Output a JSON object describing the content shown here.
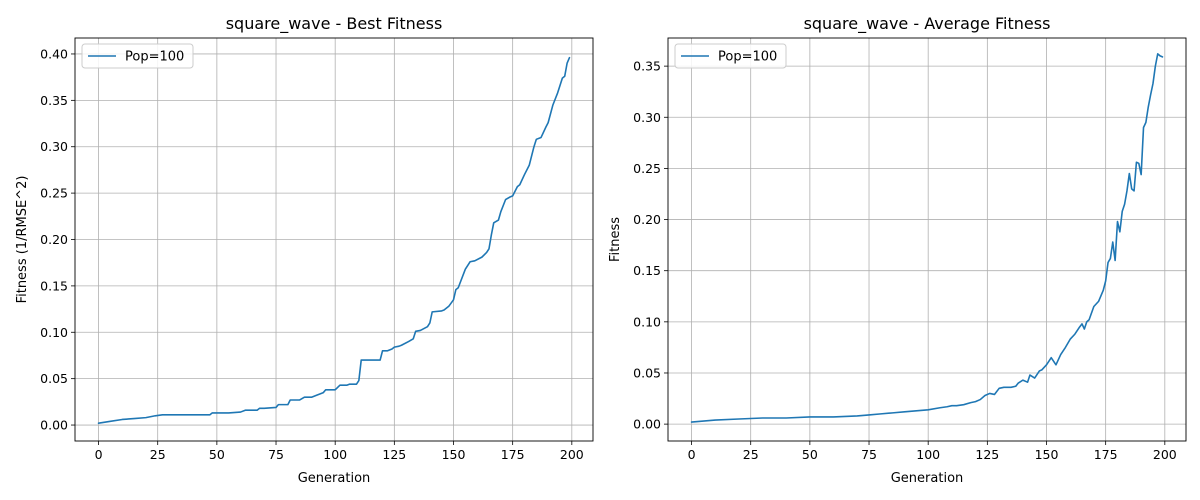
{
  "chart_data": [
    {
      "type": "line",
      "title": "square_wave - Best Fitness",
      "xlabel": "Generation",
      "ylabel": "Fitness (1/RMSE^2)",
      "xlim": [
        -9.95,
        208.95
      ],
      "ylim": [
        -0.0172,
        0.4172
      ],
      "xticks": [
        0,
        25,
        50,
        75,
        100,
        125,
        150,
        175,
        200
      ],
      "yticks": [
        0.0,
        0.05,
        0.1,
        0.15,
        0.2,
        0.25,
        0.3,
        0.35,
        0.4
      ],
      "xtick_labels": [
        "0",
        "25",
        "50",
        "75",
        "100",
        "125",
        "150",
        "175",
        "200"
      ],
      "ytick_labels": [
        "0.00",
        "0.05",
        "0.10",
        "0.15",
        "0.20",
        "0.25",
        "0.30",
        "0.35",
        "0.40"
      ],
      "grid": true,
      "legend_position": "top-left",
      "colors": {
        "line": "#1f77b4",
        "grid": "#b0b0b0"
      },
      "series": [
        {
          "name": "Pop=100",
          "x": [
            0,
            5,
            10,
            15,
            20,
            24,
            27,
            30,
            40,
            47,
            48,
            55,
            60,
            62,
            67,
            68,
            70,
            75,
            76,
            80,
            81,
            85,
            87,
            90,
            92,
            95,
            96,
            100,
            102,
            105,
            106,
            109,
            110,
            111,
            112,
            115,
            119,
            120,
            122,
            124,
            125,
            127,
            128,
            131,
            133,
            134,
            136,
            139,
            140,
            141,
            145,
            146,
            148,
            150,
            151,
            152,
            155,
            157,
            159,
            162,
            164,
            165,
            166,
            167,
            169,
            170,
            172,
            174,
            175,
            177,
            178,
            180,
            182,
            184,
            185,
            187,
            189,
            190,
            192,
            194,
            196,
            197,
            198,
            199
          ],
          "y": [
            0.002,
            0.004,
            0.006,
            0.007,
            0.008,
            0.01,
            0.011,
            0.011,
            0.011,
            0.011,
            0.013,
            0.013,
            0.014,
            0.016,
            0.016,
            0.018,
            0.018,
            0.019,
            0.022,
            0.022,
            0.027,
            0.027,
            0.03,
            0.03,
            0.032,
            0.035,
            0.038,
            0.038,
            0.043,
            0.043,
            0.044,
            0.044,
            0.048,
            0.07,
            0.07,
            0.07,
            0.07,
            0.08,
            0.08,
            0.082,
            0.084,
            0.085,
            0.086,
            0.09,
            0.093,
            0.101,
            0.102,
            0.106,
            0.11,
            0.122,
            0.123,
            0.124,
            0.128,
            0.135,
            0.146,
            0.148,
            0.168,
            0.176,
            0.177,
            0.181,
            0.186,
            0.19,
            0.205,
            0.218,
            0.221,
            0.23,
            0.243,
            0.246,
            0.247,
            0.257,
            0.259,
            0.27,
            0.28,
            0.3,
            0.308,
            0.31,
            0.321,
            0.326,
            0.345,
            0.358,
            0.374,
            0.376,
            0.39,
            0.396
          ]
        }
      ]
    },
    {
      "type": "line",
      "title": "square_wave - Average Fitness",
      "xlabel": "Generation",
      "ylabel": "Fitness",
      "xlim": [
        -9.95,
        208.95
      ],
      "ylim": [
        -0.0165,
        0.3775
      ],
      "xticks": [
        0,
        25,
        50,
        75,
        100,
        125,
        150,
        175,
        200
      ],
      "yticks": [
        0.0,
        0.05,
        0.1,
        0.15,
        0.2,
        0.25,
        0.3,
        0.35
      ],
      "xtick_labels": [
        "0",
        "25",
        "50",
        "75",
        "100",
        "125",
        "150",
        "175",
        "200"
      ],
      "ytick_labels": [
        "0.00",
        "0.05",
        "0.10",
        "0.15",
        "0.20",
        "0.25",
        "0.30",
        "0.35"
      ],
      "grid": true,
      "legend_position": "top-left",
      "colors": {
        "line": "#1f77b4",
        "grid": "#b0b0b0"
      },
      "series": [
        {
          "name": "Pop=100",
          "x": [
            0,
            10,
            20,
            30,
            40,
            50,
            60,
            70,
            75,
            80,
            85,
            90,
            95,
            100,
            105,
            108,
            110,
            112,
            115,
            118,
            120,
            122,
            124,
            126,
            128,
            130,
            132,
            135,
            137,
            138,
            140,
            142,
            143,
            145,
            147,
            148,
            150,
            152,
            154,
            156,
            158,
            160,
            162,
            164,
            165,
            166,
            167,
            168,
            170,
            172,
            174,
            175,
            176,
            177,
            178,
            179,
            180,
            181,
            182,
            183,
            184,
            185,
            186,
            187,
            188,
            189,
            190,
            191,
            192,
            193,
            194,
            195,
            196,
            197,
            198,
            199
          ],
          "y": [
            0.002,
            0.004,
            0.005,
            0.006,
            0.006,
            0.007,
            0.007,
            0.008,
            0.009,
            0.01,
            0.011,
            0.012,
            0.013,
            0.014,
            0.016,
            0.017,
            0.018,
            0.018,
            0.019,
            0.021,
            0.022,
            0.024,
            0.028,
            0.03,
            0.029,
            0.035,
            0.036,
            0.036,
            0.037,
            0.04,
            0.043,
            0.041,
            0.048,
            0.045,
            0.052,
            0.053,
            0.058,
            0.065,
            0.058,
            0.068,
            0.075,
            0.083,
            0.088,
            0.095,
            0.098,
            0.093,
            0.1,
            0.102,
            0.115,
            0.12,
            0.131,
            0.14,
            0.158,
            0.162,
            0.178,
            0.16,
            0.198,
            0.188,
            0.208,
            0.215,
            0.228,
            0.245,
            0.23,
            0.228,
            0.256,
            0.255,
            0.244,
            0.29,
            0.295,
            0.31,
            0.322,
            0.333,
            0.35,
            0.362,
            0.36,
            0.359
          ]
        }
      ]
    }
  ]
}
